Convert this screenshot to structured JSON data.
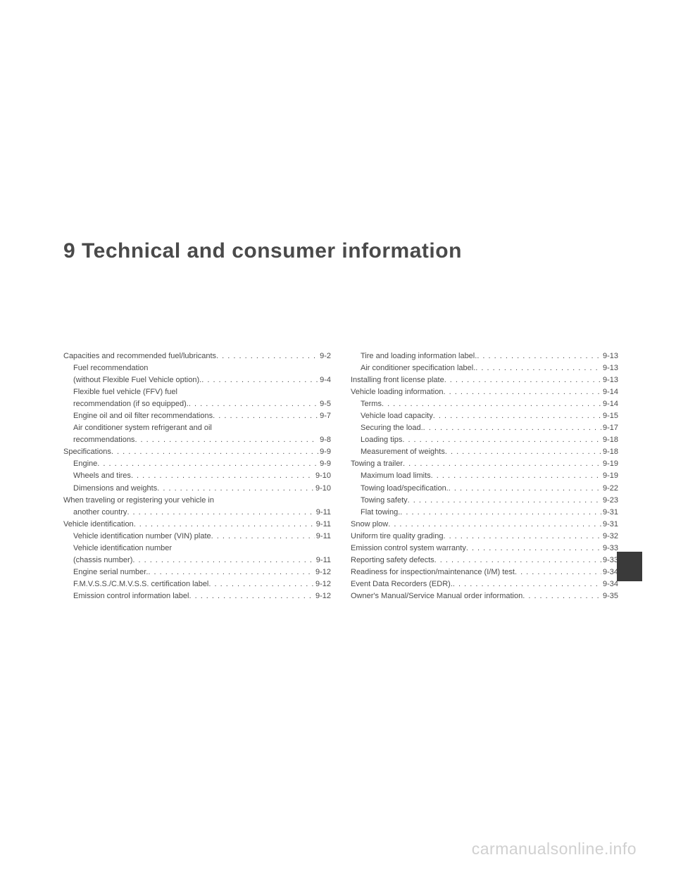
{
  "chapter_number": "9",
  "chapter_title": "Technical and consumer information",
  "watermark": "carmanualsonline.info",
  "left_column": [
    {
      "label": "Capacities and recommended fuel/lubricants",
      "page": "9-2",
      "indent": false
    },
    {
      "label": "Fuel recommendation",
      "page": "",
      "indent": true,
      "wrap": true
    },
    {
      "label": "(without Flexible Fuel Vehicle option).",
      "page": "9-4",
      "indent": true,
      "cont": true
    },
    {
      "label": "Flexible fuel vehicle (FFV) fuel",
      "page": "",
      "indent": true,
      "wrap": true
    },
    {
      "label": "recommendation (if so equipped).",
      "page": "9-5",
      "indent": true,
      "cont": true
    },
    {
      "label": "Engine oil and oil filter recommendations",
      "page": "9-7",
      "indent": true
    },
    {
      "label": "Air conditioner system refrigerant and oil",
      "page": "",
      "indent": true,
      "wrap": true
    },
    {
      "label": "recommendations",
      "page": "9-8",
      "indent": true,
      "cont": true
    },
    {
      "label": "Specifications",
      "page": "9-9",
      "indent": false
    },
    {
      "label": "Engine",
      "page": "9-9",
      "indent": true
    },
    {
      "label": "Wheels and tires",
      "page": "9-10",
      "indent": true
    },
    {
      "label": "Dimensions and weights",
      "page": "9-10",
      "indent": true
    },
    {
      "label": "When traveling or registering your vehicle in",
      "page": "",
      "indent": false,
      "wrap": true
    },
    {
      "label": "another country",
      "page": "9-11",
      "indent": false,
      "cont": true
    },
    {
      "label": "Vehicle identification",
      "page": "9-11",
      "indent": false
    },
    {
      "label": "Vehicle identification number (VIN) plate",
      "page": "9-11",
      "indent": true
    },
    {
      "label": "Vehicle identification number",
      "page": "",
      "indent": true,
      "wrap": true
    },
    {
      "label": "(chassis number)",
      "page": "9-11",
      "indent": true,
      "cont": true
    },
    {
      "label": "Engine serial number.",
      "page": "9-12",
      "indent": true
    },
    {
      "label": "F.M.V.S.S./C.M.V.S.S. certification label",
      "page": "9-12",
      "indent": true
    },
    {
      "label": "Emission control information label",
      "page": "9-12",
      "indent": true
    }
  ],
  "right_column": [
    {
      "label": "Tire and loading information label.",
      "page": "9-13",
      "indent": true
    },
    {
      "label": "Air conditioner specification label.",
      "page": "9-13",
      "indent": true
    },
    {
      "label": "Installing front license plate",
      "page": "9-13",
      "indent": false
    },
    {
      "label": "Vehicle loading information",
      "page": "9-14",
      "indent": false
    },
    {
      "label": "Terms",
      "page": "9-14",
      "indent": true
    },
    {
      "label": "Vehicle load capacity",
      "page": "9-15",
      "indent": true
    },
    {
      "label": "Securing the load.",
      "page": "9-17",
      "indent": true
    },
    {
      "label": "Loading tips",
      "page": "9-18",
      "indent": true
    },
    {
      "label": "Measurement of weights",
      "page": "9-18",
      "indent": true
    },
    {
      "label": "Towing a trailer",
      "page": "9-19",
      "indent": false
    },
    {
      "label": "Maximum load limits",
      "page": "9-19",
      "indent": true
    },
    {
      "label": "Towing load/specification.",
      "page": "9-22",
      "indent": true
    },
    {
      "label": "Towing safety",
      "page": "9-23",
      "indent": true
    },
    {
      "label": "Flat towing.",
      "page": "9-31",
      "indent": true
    },
    {
      "label": "Snow plow",
      "page": "9-31",
      "indent": false
    },
    {
      "label": "Uniform tire quality grading",
      "page": "9-32",
      "indent": false
    },
    {
      "label": "Emission control system warranty",
      "page": "9-33",
      "indent": false
    },
    {
      "label": "Reporting safety defects",
      "page": "9-33",
      "indent": false
    },
    {
      "label": "Readiness for inspection/maintenance (I/M) test",
      "page": "9-34",
      "indent": false
    },
    {
      "label": "Event Data Recorders (EDR).",
      "page": "9-34",
      "indent": false
    },
    {
      "label": "Owner's Manual/Service Manual order information",
      "page": "9-35",
      "indent": false
    }
  ]
}
